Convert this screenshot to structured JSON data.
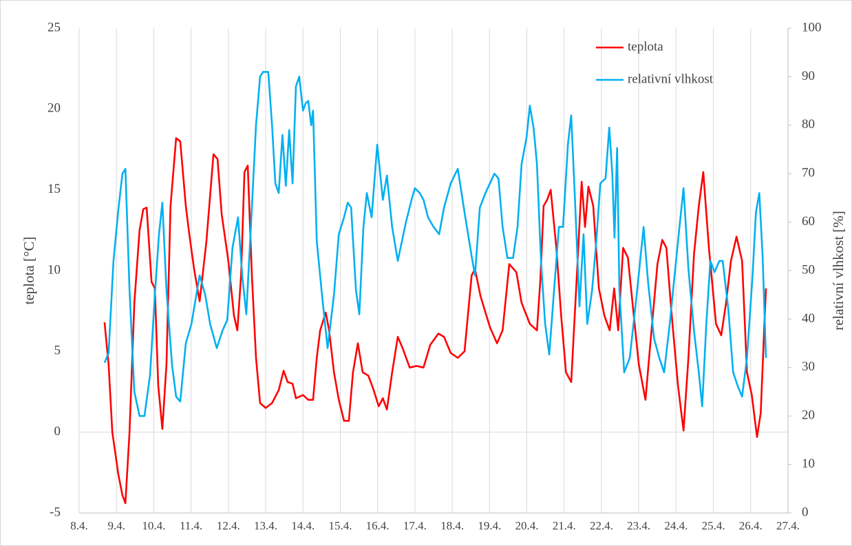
{
  "chart_data": {
    "type": "line",
    "y_label": "teplota [°C]",
    "y2_label": "relativní vlhkost [%]",
    "xlim": [
      8,
      27
    ],
    "xticks": [
      {
        "value": 8,
        "label": "8.4."
      },
      {
        "value": 9,
        "label": "9.4."
      },
      {
        "value": 10,
        "label": "10.4."
      },
      {
        "value": 11,
        "label": "11.4."
      },
      {
        "value": 12,
        "label": "12.4."
      },
      {
        "value": 13,
        "label": "13.4."
      },
      {
        "value": 14,
        "label": "14.4."
      },
      {
        "value": 15,
        "label": "15.4."
      },
      {
        "value": 16,
        "label": "16.4."
      },
      {
        "value": 17,
        "label": "17.4."
      },
      {
        "value": 18,
        "label": "18.4."
      },
      {
        "value": 19,
        "label": "19.4."
      },
      {
        "value": 20,
        "label": "20.4."
      },
      {
        "value": 21,
        "label": "21.4."
      },
      {
        "value": 22,
        "label": "22.4."
      },
      {
        "value": 23,
        "label": "23.4."
      },
      {
        "value": 24,
        "label": "24.4."
      },
      {
        "value": 25,
        "label": "25.4."
      },
      {
        "value": 26,
        "label": "26.4."
      },
      {
        "value": 27,
        "label": "27.4."
      }
    ],
    "ylim": [
      -5,
      25
    ],
    "yticks": [
      -5,
      0,
      5,
      10,
      15,
      20,
      25
    ],
    "y2lim": [
      0,
      100
    ],
    "y2ticks": [
      0,
      10,
      20,
      30,
      40,
      50,
      60,
      70,
      80,
      90,
      100
    ],
    "grid": "x",
    "legend": "upper right",
    "series": [
      {
        "name": "teplota",
        "color": "#ff0000",
        "axis": "y",
        "x": [
          8.68,
          8.79,
          8.89,
          9.05,
          9.16,
          9.24,
          9.35,
          9.48,
          9.62,
          9.72,
          9.81,
          9.94,
          10.03,
          10.12,
          10.23,
          10.34,
          10.45,
          10.6,
          10.71,
          10.86,
          10.95,
          11.08,
          11.23,
          11.41,
          11.6,
          11.71,
          11.82,
          12.0,
          12.15,
          12.24,
          12.34,
          12.43,
          12.52,
          12.63,
          12.74,
          12.85,
          13.0,
          13.17,
          13.35,
          13.48,
          13.59,
          13.72,
          13.81,
          14.0,
          14.14,
          14.27,
          14.37,
          14.46,
          14.61,
          14.7,
          14.83,
          14.96,
          15.1,
          15.23,
          15.34,
          15.47,
          15.6,
          15.75,
          15.88,
          16.03,
          16.14,
          16.25,
          16.39,
          16.54,
          16.67,
          16.86,
          17.04,
          17.23,
          17.41,
          17.63,
          17.78,
          17.96,
          18.15,
          18.33,
          18.52,
          18.61,
          18.76,
          19.01,
          19.2,
          19.35,
          19.53,
          19.72,
          19.86,
          20.08,
          20.27,
          20.36,
          20.45,
          20.55,
          20.64,
          20.79,
          20.92,
          21.05,
          21.19,
          21.34,
          21.47,
          21.56,
          21.65,
          21.78,
          21.93,
          22.08,
          22.22,
          22.34,
          22.45,
          22.58,
          22.71,
          22.85,
          23.0,
          23.18,
          23.31,
          23.5,
          23.63,
          23.74,
          23.87,
          24.05,
          24.2,
          24.33,
          24.48,
          24.61,
          24.73,
          24.88,
          25.07,
          25.21,
          25.34,
          25.47,
          25.62,
          25.77,
          25.9,
          26.03,
          26.17,
          26.27,
          26.36,
          26.41
        ],
        "values": [
          6.8,
          4.2,
          0,
          -2.6,
          -3.9,
          -4.4,
          0,
          8,
          12.5,
          13.8,
          13.9,
          9.3,
          8.9,
          2.9,
          0.2,
          4.2,
          14,
          18.2,
          18,
          14,
          12.3,
          10.1,
          8.1,
          11.8,
          17.2,
          16.9,
          13.5,
          10.6,
          7.2,
          6.3,
          9.7,
          16.1,
          16.5,
          9.7,
          4.6,
          1.8,
          1.5,
          1.8,
          2.6,
          3.8,
          3.1,
          3.0,
          2.1,
          2.3,
          2.0,
          2.0,
          4.6,
          6.3,
          7.4,
          6.3,
          3.7,
          2.0,
          0.7,
          0.7,
          3.7,
          5.5,
          3.7,
          3.5,
          2.7,
          1.6,
          2.1,
          1.4,
          3.7,
          5.9,
          5.2,
          4.0,
          4.1,
          4.0,
          5.4,
          6.1,
          5.9,
          4.9,
          4.6,
          5.0,
          9.7,
          10.1,
          8.4,
          6.5,
          5.5,
          6.3,
          10.4,
          9.9,
          8.0,
          6.7,
          6.3,
          9.3,
          14.0,
          14.4,
          15.0,
          11.4,
          7.2,
          3.7,
          3.1,
          9.7,
          15.5,
          12.7,
          15.2,
          14.0,
          8.9,
          7.2,
          6.3,
          8.9,
          6.3,
          11.4,
          10.8,
          7.6,
          4.2,
          2.0,
          5.5,
          10.4,
          11.9,
          11.4,
          7.6,
          2.9,
          0.1,
          4.6,
          11.0,
          14.0,
          16.1,
          11.4,
          6.7,
          6.0,
          8.0,
          10.6,
          12.1,
          10.6,
          3.7,
          2.3,
          -0.3,
          1.2,
          6.3,
          8.9
        ]
      },
      {
        "name": "relativní vlhkost",
        "color": "#00b0f0",
        "axis": "y2",
        "x": [
          8.68,
          8.79,
          8.92,
          9.05,
          9.16,
          9.24,
          9.35,
          9.48,
          9.62,
          9.75,
          9.9,
          10.03,
          10.14,
          10.23,
          10.34,
          10.49,
          10.6,
          10.71,
          10.86,
          11.01,
          11.23,
          11.38,
          11.51,
          11.69,
          11.84,
          11.97,
          12.11,
          12.26,
          12.37,
          12.48,
          12.61,
          12.74,
          12.85,
          12.93,
          13.07,
          13.17,
          13.26,
          13.35,
          13.45,
          13.54,
          13.63,
          13.72,
          13.81,
          13.9,
          14.0,
          14.07,
          14.14,
          14.22,
          14.27,
          14.37,
          14.51,
          14.66,
          14.83,
          14.96,
          15.1,
          15.2,
          15.29,
          15.42,
          15.51,
          15.62,
          15.71,
          15.84,
          15.99,
          16.14,
          16.25,
          16.39,
          16.54,
          16.76,
          16.91,
          17.0,
          17.13,
          17.23,
          17.35,
          17.5,
          17.65,
          17.78,
          17.96,
          18.15,
          18.33,
          18.52,
          18.61,
          18.74,
          18.89,
          19.01,
          19.13,
          19.24,
          19.35,
          19.48,
          19.63,
          19.75,
          19.86,
          19.99,
          20.08,
          20.18,
          20.27,
          20.38,
          20.49,
          20.6,
          20.73,
          20.86,
          20.97,
          21.1,
          21.19,
          21.3,
          21.41,
          21.52,
          21.62,
          21.75,
          21.86,
          21.97,
          22.11,
          22.21,
          22.29,
          22.35,
          22.42,
          22.48,
          22.61,
          22.76,
          22.94,
          23.13,
          23.25,
          23.41,
          23.55,
          23.68,
          23.83,
          23.96,
          24.07,
          24.2,
          24.33,
          24.48,
          24.61,
          24.7,
          24.81,
          24.92,
          25.03,
          25.16,
          25.25,
          25.4,
          25.53,
          25.66,
          25.77,
          25.9,
          26.05,
          26.14,
          26.23,
          26.32,
          26.41
        ],
        "values": [
          31,
          33,
          52,
          62.5,
          70,
          71,
          46,
          25,
          20,
          20,
          28.4,
          45,
          57.5,
          64,
          46,
          30.5,
          24,
          23,
          35,
          39,
          49,
          45,
          39,
          34,
          37.6,
          39.8,
          54.7,
          61,
          49,
          41,
          60,
          80,
          90,
          91,
          91,
          80,
          68,
          66,
          78,
          67.5,
          79,
          68,
          88,
          90,
          83,
          84.5,
          85,
          80,
          83,
          56,
          45,
          34,
          45,
          57.5,
          61,
          64,
          63,
          46,
          41,
          59,
          66,
          61,
          76,
          64.6,
          69.6,
          59,
          52,
          60,
          64.6,
          67,
          66,
          64.6,
          61,
          59,
          57.5,
          63,
          68,
          71,
          62,
          53,
          49,
          63,
          66,
          68,
          70,
          69,
          59,
          52.6,
          52.6,
          59,
          72,
          77.4,
          84,
          79.5,
          72,
          52,
          39,
          32.7,
          46,
          59,
          59,
          76,
          82,
          63,
          42.6,
          57.5,
          39,
          46,
          56,
          68,
          69,
          79.5,
          70,
          56.8,
          75.3,
          46,
          29,
          32,
          44.7,
          59,
          47.6,
          36,
          32,
          29,
          39,
          49,
          57.5,
          67,
          50.4,
          37.6,
          29,
          22,
          39,
          52,
          49.7,
          52,
          52,
          42,
          29,
          26,
          24,
          32,
          49,
          62,
          66,
          53,
          32
        ]
      }
    ]
  }
}
